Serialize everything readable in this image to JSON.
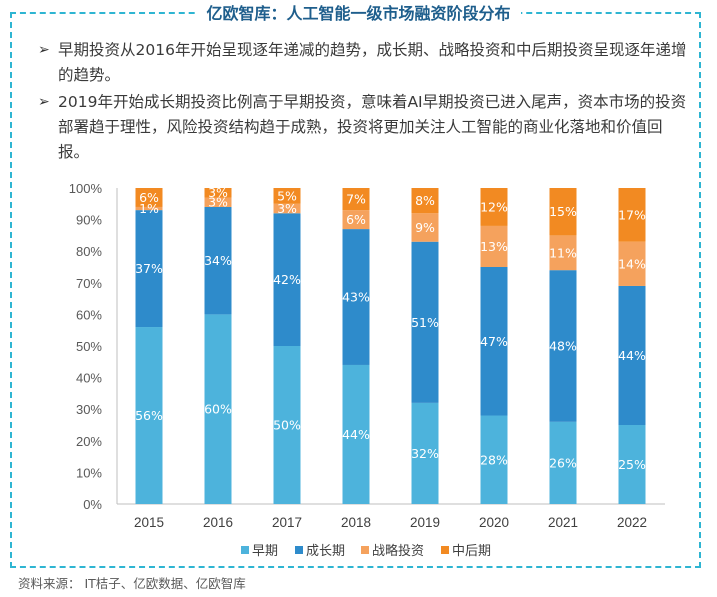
{
  "title": "亿欧智库：人工智能一级市场融资阶段分布",
  "bullets": [
    {
      "icon": "arrow-bullet-icon",
      "text": "早期投资从2016年开始呈现逐年递减的趋势，成长期、战略投资和中后期投资呈现逐年递增的趋势。"
    },
    {
      "icon": "arrow-bullet-icon",
      "text": "2019年开始成长期投资比例高于早期投资，意味着AI早期投资已进入尾声，资本市场的投资部署趋于理性，风险投资结构趋于成熟，投资将更加关注人工智能的商业化落地和价值回报。"
    }
  ],
  "arrow_glyph": "➢",
  "source": "资料来源： IT桔子、亿欧数据、亿欧智库",
  "colors": {
    "frame": "#2EB5D2",
    "title": "#1E5E8C",
    "early": "#4DB3DC",
    "growth": "#2E8BCB",
    "strategic": "#F5A25D",
    "late": "#F28A22"
  },
  "chart_data": {
    "type": "bar",
    "stacked": true,
    "categories": [
      "2015",
      "2016",
      "2017",
      "2018",
      "2019",
      "2020",
      "2021",
      "2022"
    ],
    "series": [
      {
        "name": "早期",
        "values": [
          56,
          60,
          50,
          44,
          32,
          28,
          26,
          25
        ],
        "labels": [
          "56%",
          "60%",
          "50%",
          "44%",
          "32%",
          "28%",
          "26%",
          "25%"
        ]
      },
      {
        "name": "成长期",
        "values": [
          37,
          34,
          42,
          43,
          51,
          47,
          48,
          44
        ],
        "labels": [
          "37%",
          "34%",
          "42%",
          "43%",
          "51%",
          "47%",
          "48%",
          "44%"
        ]
      },
      {
        "name": "战略投资",
        "values": [
          1,
          3,
          3,
          6,
          9,
          13,
          11,
          14
        ],
        "labels": [
          "1%",
          "3%",
          "3%",
          "6%",
          "9%",
          "13%",
          "11%",
          "14%"
        ]
      },
      {
        "name": "中后期",
        "values": [
          6,
          3,
          5,
          7,
          8,
          12,
          15,
          17
        ],
        "labels": [
          "6%",
          "3%",
          "5%",
          "7%",
          "8%",
          "12%",
          "15%",
          "17%"
        ]
      }
    ],
    "yticks": [
      "0%",
      "10%",
      "20%",
      "30%",
      "40%",
      "50%",
      "60%",
      "70%",
      "80%",
      "90%",
      "100%"
    ],
    "ylim": [
      0,
      100
    ],
    "legend_position": "bottom"
  }
}
